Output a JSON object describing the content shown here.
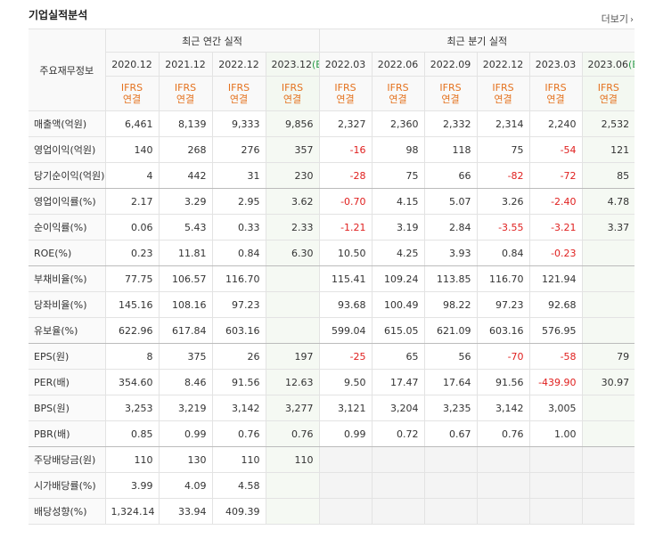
{
  "header": {
    "title": "기업실적분석",
    "more": "더보기"
  },
  "table": {
    "corner": "주요재무정보",
    "groups": [
      {
        "label": "최근 연간 실적",
        "span": 4
      },
      {
        "label": "최근 분기 실적",
        "span": 6
      }
    ],
    "columns": [
      {
        "period": "2020.12",
        "basis": [
          "IFRS",
          "연결"
        ]
      },
      {
        "period": "2021.12",
        "basis": [
          "IFRS",
          "연결"
        ]
      },
      {
        "period": "2022.12",
        "basis": [
          "IFRS",
          "연결"
        ]
      },
      {
        "period": "2023.12",
        "estimate": "(E)",
        "basis": [
          "IFRS",
          "연결"
        ]
      },
      {
        "period": "2022.03",
        "basis": [
          "IFRS",
          "연결"
        ]
      },
      {
        "period": "2022.06",
        "basis": [
          "IFRS",
          "연결"
        ]
      },
      {
        "period": "2022.09",
        "basis": [
          "IFRS",
          "연결"
        ]
      },
      {
        "period": "2022.12",
        "basis": [
          "IFRS",
          "연결"
        ]
      },
      {
        "period": "2023.03",
        "basis": [
          "IFRS",
          "연결"
        ]
      },
      {
        "period": "2023.06",
        "estimate": "(E)",
        "basis": [
          "IFRS",
          "연결"
        ]
      }
    ],
    "rows": [
      {
        "label": "매출액(억원)",
        "values": [
          "6,461",
          "8,139",
          "9,333",
          "9,856",
          "2,327",
          "2,360",
          "2,332",
          "2,314",
          "2,240",
          "2,532"
        ]
      },
      {
        "label": "영업이익(억원)",
        "values": [
          "140",
          "268",
          "276",
          "357",
          "-16",
          "98",
          "118",
          "75",
          "-54",
          "121"
        ]
      },
      {
        "label": "당기순이익(억원)",
        "values": [
          "4",
          "442",
          "31",
          "230",
          "-28",
          "75",
          "66",
          "-82",
          "-72",
          "85"
        ]
      },
      {
        "label": "영업이익률(%)",
        "values": [
          "2.17",
          "3.29",
          "2.95",
          "3.62",
          "-0.70",
          "4.15",
          "5.07",
          "3.26",
          "-2.40",
          "4.78"
        ]
      },
      {
        "label": "순이익률(%)",
        "values": [
          "0.06",
          "5.43",
          "0.33",
          "2.33",
          "-1.21",
          "3.19",
          "2.84",
          "-3.55",
          "-3.21",
          "3.37"
        ]
      },
      {
        "label": "ROE(%)",
        "values": [
          "0.23",
          "11.81",
          "0.84",
          "6.30",
          "10.50",
          "4.25",
          "3.93",
          "0.84",
          "-0.23",
          null
        ]
      },
      {
        "label": "부채비율(%)",
        "values": [
          "77.75",
          "106.57",
          "116.70",
          null,
          "115.41",
          "109.24",
          "113.85",
          "116.70",
          "121.94",
          null
        ]
      },
      {
        "label": "당좌비율(%)",
        "values": [
          "145.16",
          "108.16",
          "97.23",
          null,
          "93.68",
          "100.49",
          "98.22",
          "97.23",
          "92.68",
          null
        ]
      },
      {
        "label": "유보율(%)",
        "values": [
          "622.96",
          "617.84",
          "603.16",
          null,
          "599.04",
          "615.05",
          "621.09",
          "603.16",
          "576.95",
          null
        ]
      },
      {
        "label": "EPS(원)",
        "values": [
          "8",
          "375",
          "26",
          "197",
          "-25",
          "65",
          "56",
          "-70",
          "-58",
          "79"
        ]
      },
      {
        "label": "PER(배)",
        "values": [
          "354.60",
          "8.46",
          "91.56",
          "12.63",
          "9.50",
          "17.47",
          "17.64",
          "91.56",
          "-439.90",
          "30.97"
        ]
      },
      {
        "label": "BPS(원)",
        "values": [
          "3,253",
          "3,219",
          "3,142",
          "3,277",
          "3,121",
          "3,204",
          "3,235",
          "3,142",
          "3,005",
          null
        ]
      },
      {
        "label": "PBR(배)",
        "values": [
          "0.85",
          "0.99",
          "0.76",
          "0.76",
          "0.99",
          "0.72",
          "0.67",
          "0.76",
          "1.00",
          null
        ]
      },
      {
        "label": "주당배당금(원)",
        "values": [
          "110",
          "130",
          "110",
          "110",
          null,
          null,
          null,
          null,
          null,
          null
        ]
      },
      {
        "label": "시가배당률(%)",
        "values": [
          "3.99",
          "4.09",
          "4.58",
          null,
          null,
          null,
          null,
          null,
          null,
          null
        ]
      },
      {
        "label": "배당성향(%)",
        "values": [
          "1,324.14",
          "33.94",
          "409.39",
          null,
          null,
          null,
          null,
          null,
          null,
          null
        ]
      }
    ]
  }
}
